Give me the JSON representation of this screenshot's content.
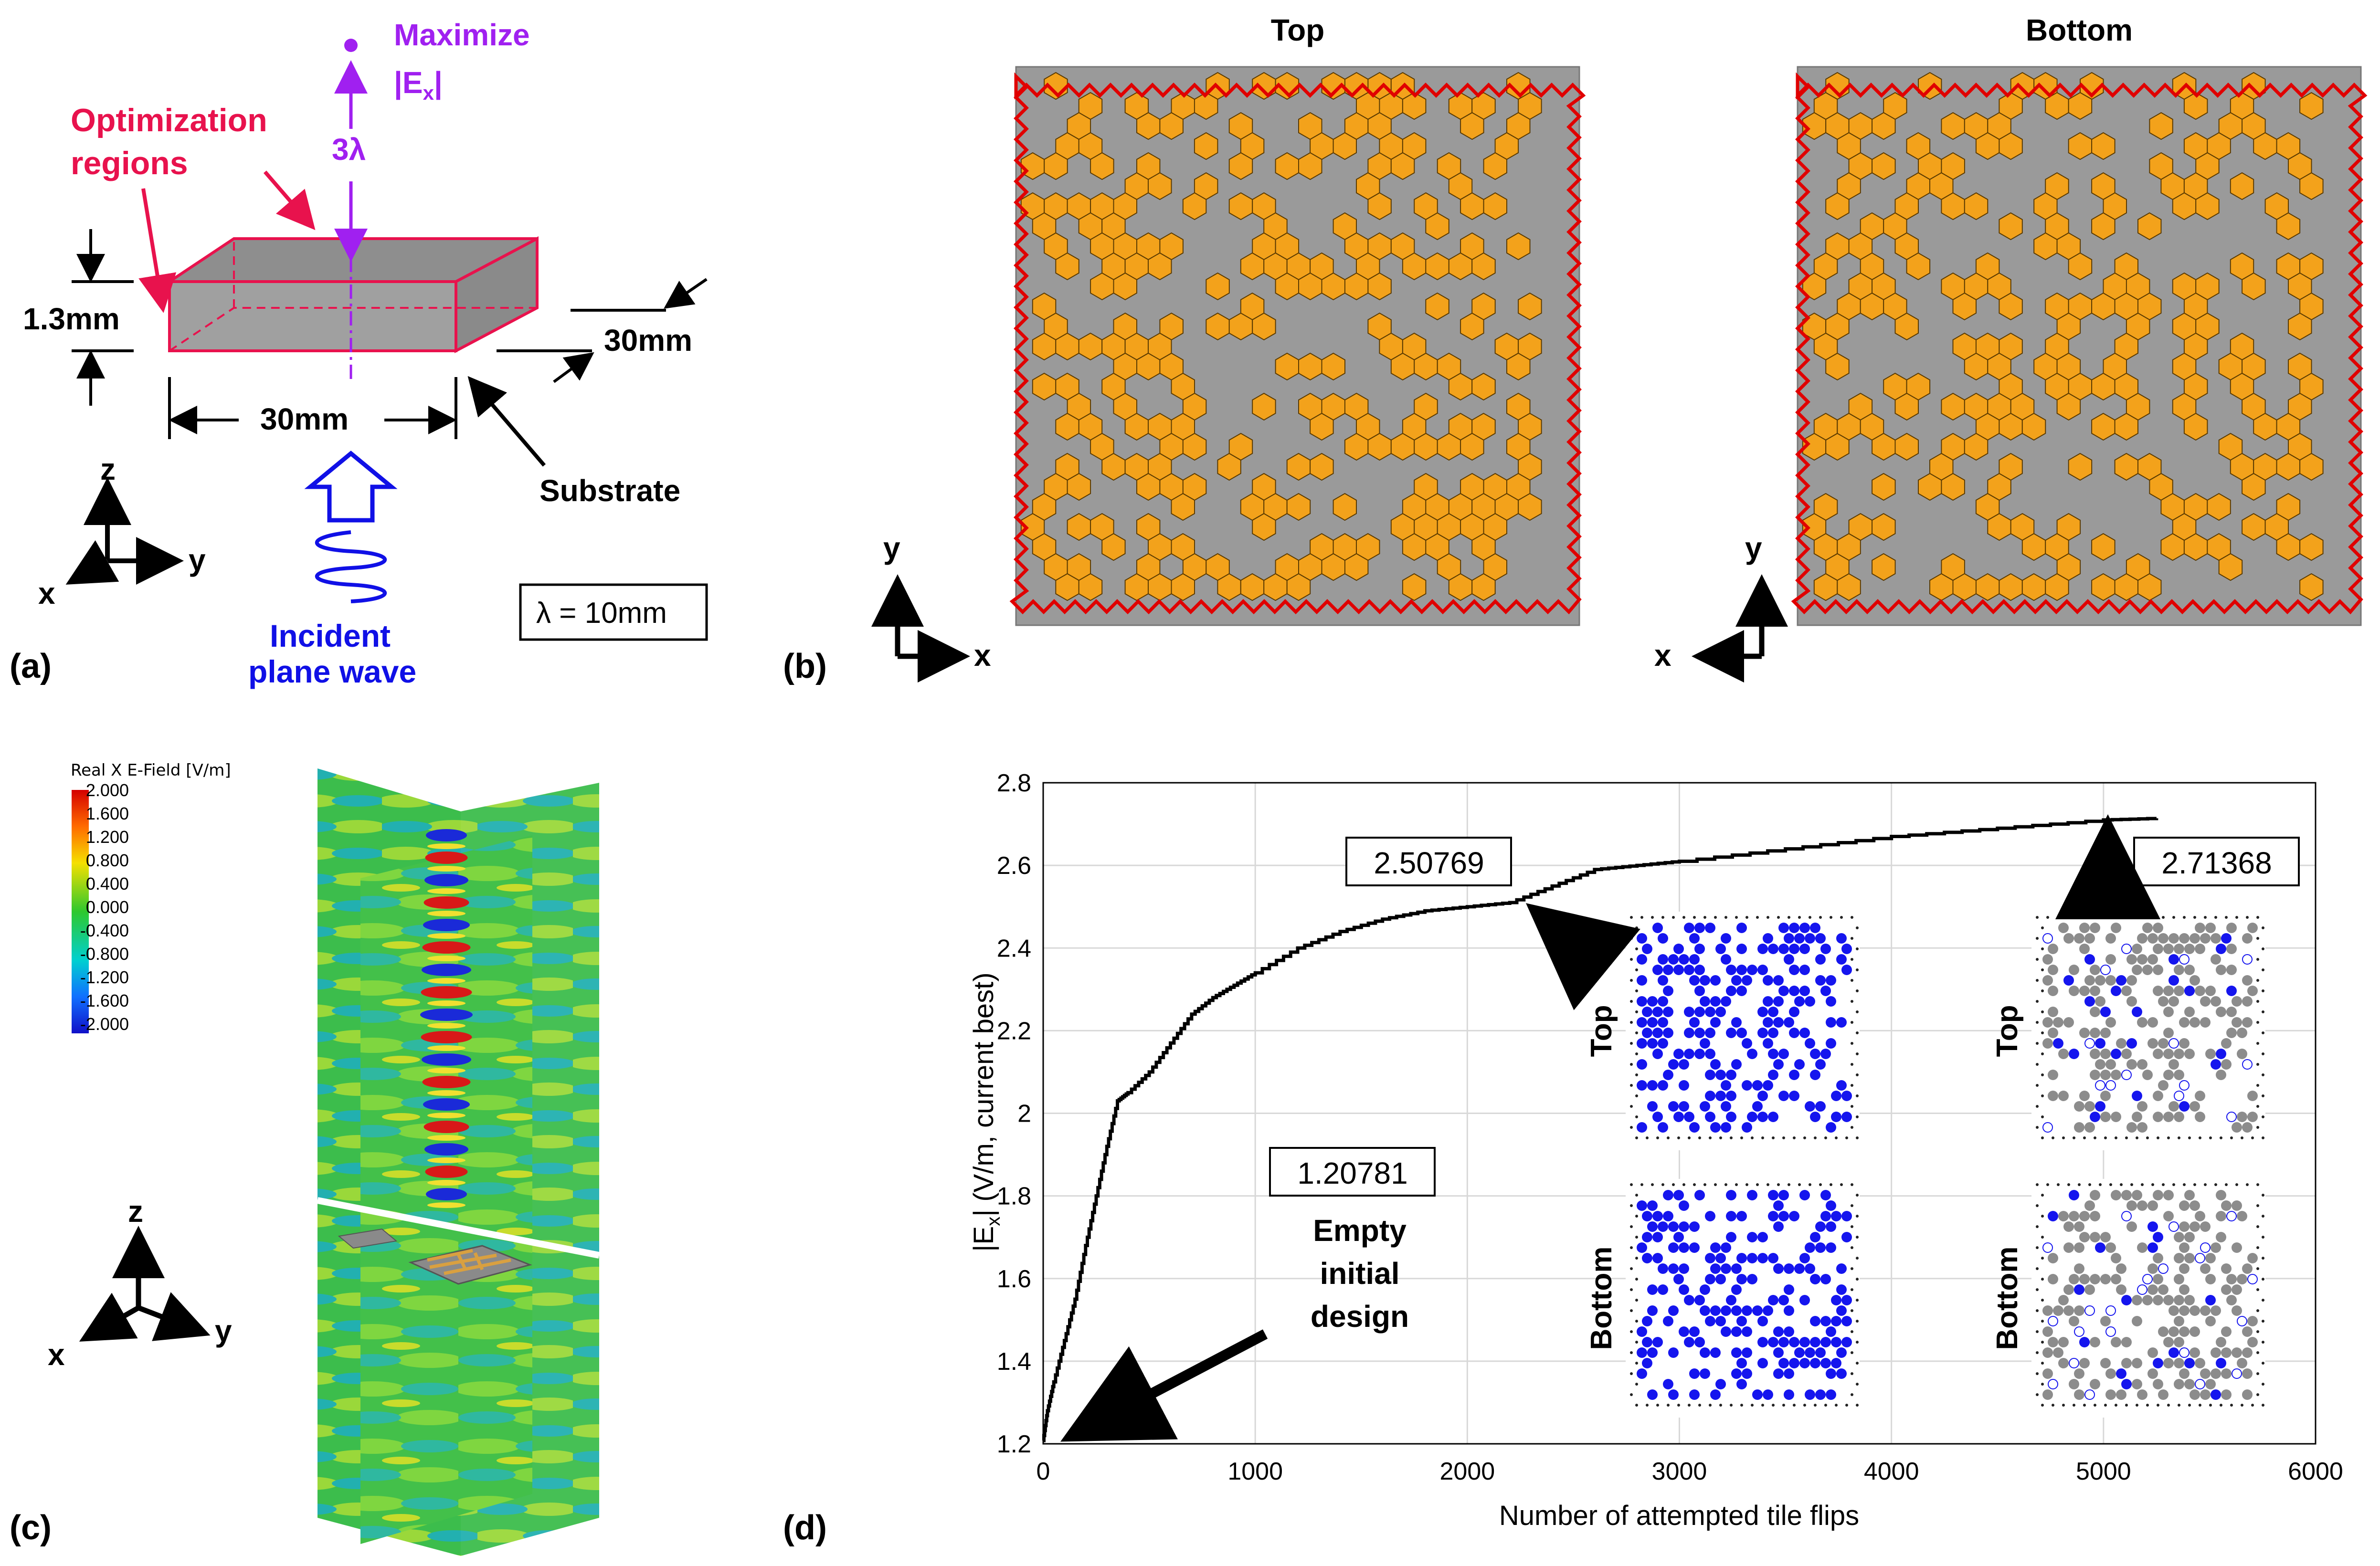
{
  "colors": {
    "magenta": "#e8124d",
    "purple": "#a020f0",
    "blue": "#1010e6",
    "orange": "#f3a21b",
    "gray_panel": "#9a9a9a",
    "red_border": "#e00000",
    "dot_blue": "#1515ee",
    "dot_gray": "#8c8c8c"
  },
  "panel_a": {
    "label": "(a)",
    "maximize_line1": "Maximize",
    "maximize_line2": "|E",
    "maximize_sub": "x",
    "maximize_close": "|",
    "three_lambda": "3λ",
    "opt_line1": "Optimization",
    "opt_line2": "regions",
    "thickness": "1.3mm",
    "width_y": "30mm",
    "width_x": "30mm",
    "substrate": "Substrate",
    "incident_line1": "Incident",
    "incident_line2": "plane wave",
    "lambda_box": "λ = 10mm",
    "axis_z": "z",
    "axis_y": "y",
    "axis_x": "x"
  },
  "panel_b": {
    "label": "(b)",
    "top_title": "Top",
    "bottom_title": "Bottom",
    "axis_y1": "y",
    "axis_x1": "x",
    "axis_y2": "y",
    "axis_x2": "x"
  },
  "panel_c": {
    "label": "(c)",
    "colorbar_title": "Real X E-Field [V/m]",
    "colorbar_ticks": [
      "2.000",
      "1.600",
      "1.200",
      "0.800",
      "0.400",
      "0.000",
      "-0.400",
      "-0.800",
      "-1.200",
      "-1.600",
      "-2.000"
    ],
    "axis_z": "z",
    "axis_y": "y",
    "axis_x": "x"
  },
  "panel_d": {
    "label": "(d)",
    "ann_initial_value": "1.20781",
    "ann_initial_l1": "Empty",
    "ann_initial_l2": "initial",
    "ann_initial_l3": "design",
    "ann_mid_value": "2.50769",
    "ann_final_value": "2.71368",
    "inset_top_1": "Top",
    "inset_bottom_1": "Bottom",
    "inset_top_2": "Top",
    "inset_bottom_2": "Bottom"
  },
  "chart_data": {
    "type": "line",
    "title": "",
    "xlabel": "Number of attempted tile flips",
    "ylabel": "|E_x| (V/m, current best)",
    "ylabel_main": "|E",
    "ylabel_sub": "x",
    "ylabel_rest": "| (V/m, current best)",
    "xlim": [
      0,
      6000
    ],
    "ylim": [
      1.2,
      2.8
    ],
    "xticks": [
      0,
      1000,
      2000,
      3000,
      4000,
      5000,
      6000
    ],
    "yticks": [
      1.2,
      1.4,
      1.6,
      1.8,
      2,
      2.2,
      2.4,
      2.6,
      2.8
    ],
    "xtick_labels": [
      "0",
      "1000",
      "2000",
      "3000",
      "4000",
      "5000",
      "6000"
    ],
    "ytick_labels": [
      "1.2",
      "1.4",
      "1.6",
      "1.8",
      "2",
      "2.2",
      "2.4",
      "2.6",
      "2.8"
    ],
    "grid": true,
    "series": [
      {
        "name": "current best",
        "x": [
          0,
          20,
          50,
          100,
          150,
          200,
          250,
          300,
          350,
          400,
          500,
          600,
          700,
          800,
          900,
          1000,
          1200,
          1400,
          1600,
          1800,
          2000,
          2200,
          2400,
          2600,
          2800,
          3000,
          3500,
          4000,
          4500,
          5000,
          5250
        ],
        "y": [
          1.208,
          1.28,
          1.35,
          1.45,
          1.55,
          1.68,
          1.8,
          1.92,
          2.03,
          2.05,
          2.1,
          2.17,
          2.24,
          2.28,
          2.31,
          2.34,
          2.4,
          2.44,
          2.47,
          2.49,
          2.5,
          2.51,
          2.55,
          2.59,
          2.6,
          2.61,
          2.64,
          2.67,
          2.69,
          2.71,
          2.714
        ]
      }
    ]
  }
}
